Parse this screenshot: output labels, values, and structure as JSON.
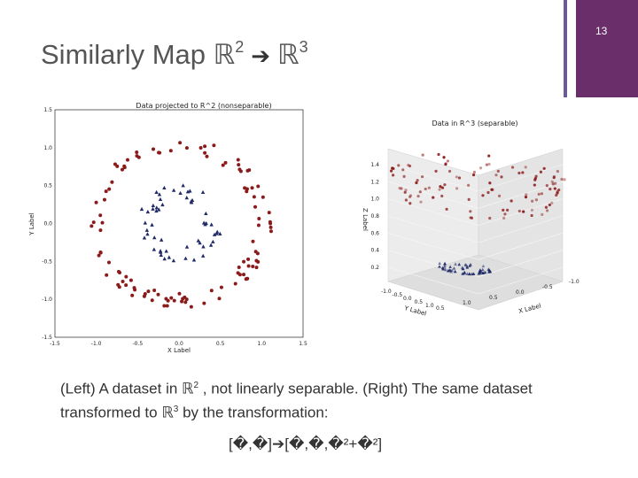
{
  "page_number": "13",
  "title": {
    "prefix": "Similarly Map ",
    "from_space": "ℝ",
    "from_exp": "2",
    "arrow": "➔",
    "to_space": "ℝ",
    "to_exp": "3"
  },
  "caption": {
    "part1": "(Left) A dataset in  ",
    "space1": "ℝ",
    "exp1": "2",
    "part2": " , not linearly separable. (Right) The same dataset transformed to ",
    "space2": "ℝ",
    "exp2": "3",
    "part3": " by the transformation:"
  },
  "formula": "[�,�]➔[�,�,�²+�²]",
  "colors": {
    "accent_dark": "#6a2f6a",
    "accent_light": "#6b5b95",
    "red_points": "#8b1a1a",
    "blue_points": "#1f2a66"
  },
  "chart_data": [
    {
      "type": "scatter",
      "title": "Data projected to R^2 (nonseparable)",
      "xlabel": "X Label",
      "ylabel": "Y Label",
      "xlim": [
        -1.5,
        1.5
      ],
      "ylim": [
        -1.5,
        1.5
      ],
      "xticks": [
        "-1.5",
        "-1.0",
        "-0.5",
        "0.0",
        "0.5",
        "1.0",
        "1.5"
      ],
      "yticks": [
        "1.5",
        "1.0",
        "0.5",
        "0.0",
        "-0.5",
        "-1.0",
        "-1.5"
      ],
      "series": [
        {
          "name": "outer",
          "marker": "circle",
          "color": "#8b1a1a",
          "radius_min": 0.92,
          "radius_max": 1.12,
          "count": 110
        },
        {
          "name": "inner",
          "marker": "triangle",
          "color": "#1f2a66",
          "radius_min": 0.3,
          "radius_max": 0.52,
          "count": 55
        }
      ]
    },
    {
      "type": "scatter",
      "title": "Data in R^3 (separable)",
      "xlabel": "X Label",
      "ylabel": "Y Label",
      "zlabel": "Z Label",
      "zticks": [
        "1.4",
        "1.2",
        "1.0",
        "0.8",
        "0.6",
        "0.4",
        "0.2"
      ],
      "xticks": [
        "0.5",
        "1.0",
        "0.5",
        "0.0",
        "-0.5",
        "-1.0"
      ],
      "yticks": [
        "-1.0",
        "-0.5",
        "0.0",
        "0.5",
        "1.0"
      ]
    }
  ]
}
